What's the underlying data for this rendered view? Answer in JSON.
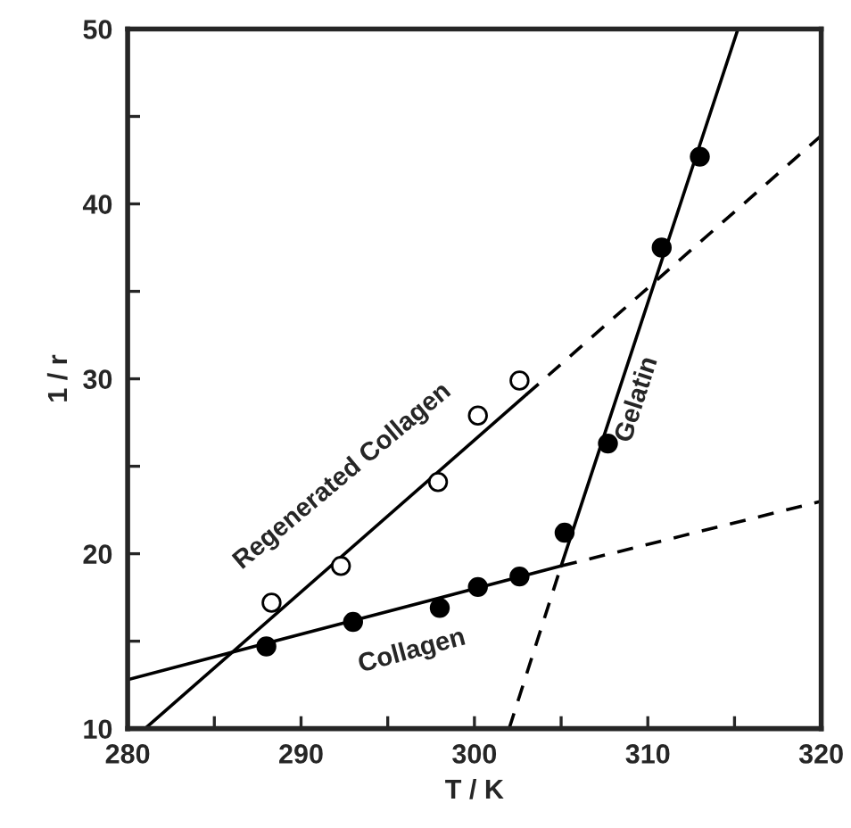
{
  "chart_data": {
    "type": "scatter",
    "xlabel": "T / K",
    "ylabel": "1 / r",
    "xlim": [
      280,
      320
    ],
    "ylim": [
      10,
      50
    ],
    "xticks": [
      280,
      {
        "value": 285,
        "label": null
      },
      290,
      {
        "value": 295,
        "label": null
      },
      300,
      {
        "value": 305,
        "label": null
      },
      310,
      {
        "value": 315,
        "label": null
      },
      320
    ],
    "yticks": [
      10,
      {
        "value": 15,
        "label": null
      },
      20,
      {
        "value": 25,
        "label": null
      },
      30,
      {
        "value": 35,
        "label": null
      },
      40,
      {
        "value": 45,
        "label": null
      },
      50
    ],
    "grid": false,
    "series": [
      {
        "marker": "circle",
        "color": "#ffffff",
        "x": [
          288.3,
          292.3,
          297.9,
          300.2,
          302.6
        ],
        "values": [
          17.2,
          19.3,
          24.1,
          27.9,
          29.9
        ]
      },
      {
        "marker": "circle",
        "color": "#000000",
        "x": [
          288,
          293,
          298,
          300.2,
          302.6,
          305.2,
          307.7,
          310.8,
          313
        ],
        "values": [
          14.7,
          16.1,
          16.9,
          18.1,
          18.7,
          21.2,
          26.3,
          37.5,
          42.7
        ]
      },
      {
        "type": "line",
        "line_style": "solid",
        "color": "#000000",
        "x": [
          281,
          303
        ],
        "values": [
          10,
          29.1
        ]
      },
      {
        "type": "line",
        "line_style": "dashed",
        "color": "#000000",
        "x": [
          303,
          320
        ],
        "values": [
          29.1,
          43.9
        ]
      },
      {
        "type": "line",
        "line_style": "solid",
        "color": "#000000",
        "x": [
          280,
          305
        ],
        "values": [
          12.8,
          19.3
        ]
      },
      {
        "type": "line",
        "line_style": "dashed",
        "color": "#000000",
        "x": [
          305,
          320
        ],
        "values": [
          19.3,
          23
        ]
      },
      {
        "type": "line",
        "line_style": "solid",
        "color": "#000000",
        "x": [
          305,
          315.2
        ],
        "values": [
          19.3,
          50
        ]
      },
      {
        "type": "line",
        "line_style": "dashed",
        "color": "#000000",
        "x": [
          302,
          305
        ],
        "values": [
          10,
          19.3
        ]
      }
    ],
    "annotations": [
      "Regenerated Collagen",
      "Collagen",
      "Gelatin"
    ]
  }
}
